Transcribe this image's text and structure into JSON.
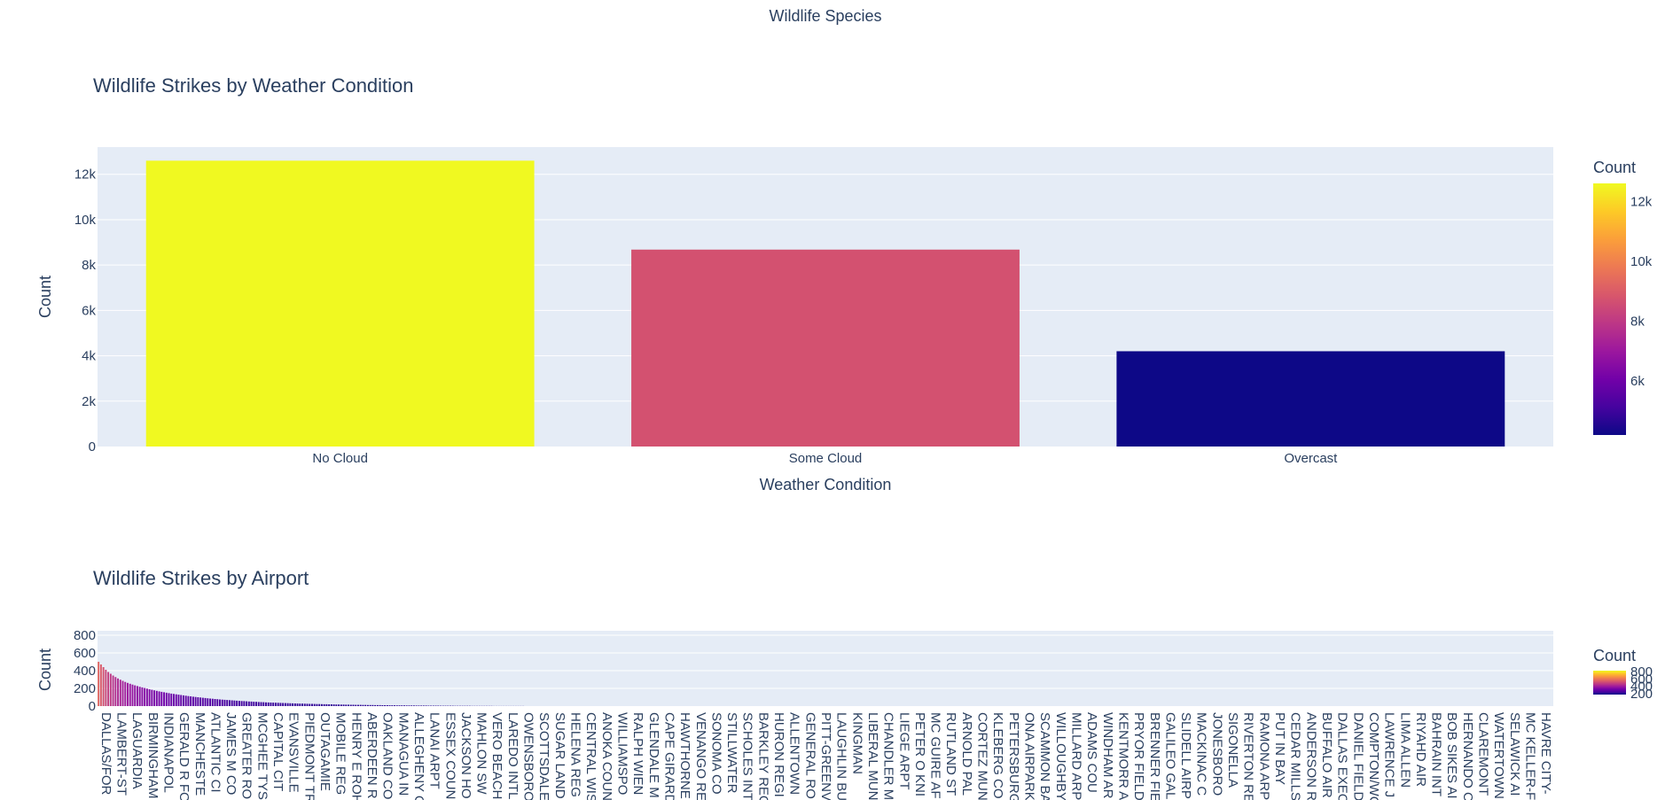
{
  "page_title": "Wildlife Species",
  "chart_data": [
    {
      "type": "bar",
      "title": "Wildlife Strikes by Weather Condition",
      "xlabel": "Weather Condition",
      "ylabel": "Count",
      "categories": [
        "No Cloud",
        "Some Cloud",
        "Overcast"
      ],
      "values": [
        12600,
        8680,
        4200
      ],
      "ylim": [
        0,
        13200
      ],
      "yticks": [
        0,
        2000,
        4000,
        6000,
        8000,
        10000,
        12000
      ],
      "ytick_labels": [
        "0",
        "2k",
        "4k",
        "6k",
        "8k",
        "10k",
        "12k"
      ],
      "colorscale": "Plasma",
      "colorbar": {
        "title": "Count",
        "range": [
          4200,
          12600
        ],
        "ticks": [
          6000,
          8000,
          10000,
          12000
        ],
        "tick_labels": [
          "6k",
          "8k",
          "10k",
          "12k"
        ]
      },
      "grid": true,
      "background": "#e5ecf6"
    },
    {
      "type": "bar",
      "title": "Wildlife Strikes by Airport",
      "xlabel": "",
      "ylabel": "Count",
      "ylim": [
        0,
        850
      ],
      "yticks": [
        0,
        200,
        400,
        600,
        800
      ],
      "ytick_labels": [
        "0",
        "200",
        "400",
        "600",
        "800"
      ],
      "colorscale": "Plasma",
      "colorbar": {
        "title": "Count",
        "ticks": [
          200,
          400,
          600,
          800
        ],
        "tick_labels": [
          "200",
          "400",
          "600",
          "800"
        ]
      },
      "grid": true,
      "background": "#e5ecf6",
      "categories_shown": [
        "DALLAS/FOR",
        "LAMBERT-ST",
        "LAGUARDIA",
        "BIRMINGHAM",
        "INDIANAPOL",
        "GERALD R FO",
        "MANCHESTE",
        "ATLANTIC CI",
        "JAMES M CO",
        "GREATER RO",
        "MCGHEE TYS",
        "CAPITAL CIT",
        "EVANSVILLE",
        "PIEDMONT TR",
        "OUTAGAMIE",
        "MOBILE REG",
        "HENRY E ROH",
        "ABERDEEN R",
        "OAKLAND CO",
        "MANAGUA IN",
        "ALLEGHENY C",
        "LANAI ARPT",
        "ESSEX COUN",
        "JACKSON HO",
        "MAHLON SW",
        "VERO BEACH",
        "LAREDO INTL",
        "OWENSBORO",
        "SCOTTSDALE",
        "SUGAR LAND",
        "HELENA REG",
        "CENTRAL WIS",
        "ANOKA COUN",
        "WILLIAMSPO",
        "RALPH WIEN",
        "GLENDALE M",
        "CAPE GIRARD",
        "HAWTHORNE",
        "VENANGO RE",
        "SONOMA CO",
        "STILLWATER",
        "SCHOLES INT",
        "BARKLEY REG",
        "HURON REGI",
        "ALLENTOWN",
        "GENERAL RO",
        "PITT-GREENV",
        "LAUGHLIN BU",
        "KINGMAN",
        "LIBERAL MUN",
        "CHANDLER M",
        "LIEGE ARPT",
        "PETER O KNI",
        "MC GUIRE AF",
        "RUTLAND ST",
        "ARNOLD PAL",
        "CORTEZ MUN",
        "KLEBERG CO",
        "PETERSBURG",
        "ONA AIRPARK",
        "SCAMMON BA",
        "WILLOUGHBY",
        "MILLARD ARP",
        "ADAMS COU",
        "WINDHAM AR",
        "KENTMORR A",
        "PRYOR FIELD",
        "BRENNER FIE",
        "GALILEO GAL",
        "SLIDELL AIRP",
        "MACKINAC C",
        "JONESBORO",
        "SIGONELLA",
        "RIVERTON RE",
        "RAMONA ARP",
        "PUT IN BAY",
        "CEDAR MILLS",
        "ANDERSON R",
        "BUFFALO AIR",
        "DALLAS EXEC",
        "DANIEL FIELD",
        "COMPTON/WO",
        "LAWRENCE J",
        "LIMA ALLEN",
        "RIYAHD AIR",
        "BAHRAIN INT",
        "BOB SIKES AI",
        "HERNANDO C",
        "CLAREMONT",
        "WATERTOWN",
        "SELAWICK AI",
        "MC KELLER-F",
        "HAVRE CITY-"
      ],
      "top_values": [
        500,
        470,
        440,
        410,
        385,
        365,
        345,
        328,
        312,
        298,
        285,
        273,
        262,
        252,
        243,
        234,
        226,
        218,
        211,
        204,
        197,
        190,
        184,
        178,
        172,
        166,
        161,
        156,
        151,
        146,
        141,
        137,
        133,
        129,
        125,
        121,
        117,
        113,
        110,
        106,
        103,
        100,
        97,
        94,
        91,
        88,
        85,
        83,
        80,
        78,
        75,
        73,
        71,
        69,
        67,
        65,
        63,
        61,
        59,
        57,
        56,
        54,
        52,
        51,
        49,
        48,
        46,
        45,
        44,
        42,
        41,
        40,
        39,
        38,
        37,
        36,
        35,
        34,
        33,
        32,
        31,
        30,
        29,
        28,
        28,
        27,
        26,
        25,
        25,
        24,
        23,
        23,
        22,
        21,
        21,
        20,
        20,
        19,
        18,
        18,
        17,
        17,
        16,
        16,
        15,
        15,
        14,
        14,
        14,
        13,
        13,
        12,
        12,
        12,
        11,
        11,
        11,
        10,
        10,
        10,
        9,
        9,
        9,
        8,
        8,
        8,
        8,
        7,
        7,
        7,
        7,
        6,
        6,
        6,
        6,
        6,
        5,
        5,
        5,
        5,
        5,
        4,
        4,
        4,
        4,
        4,
        4,
        3,
        3,
        3,
        3,
        3,
        3,
        3,
        2,
        2,
        2,
        2,
        2,
        2,
        2,
        2,
        2,
        1,
        1,
        1,
        1,
        1,
        1,
        1,
        1,
        1,
        1,
        1,
        1,
        1
      ]
    }
  ]
}
